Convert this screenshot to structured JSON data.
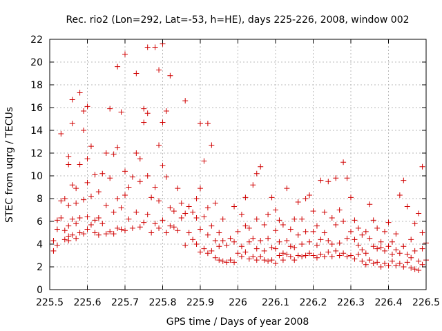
{
  "chart_data": {
    "type": "scatter",
    "title": "Rec. rio2 (Lon=292, Lat=-53, h=HE), days 225-226, 2008, window 002",
    "xlabel": "GPS time / Days of year 2008",
    "ylabel": "STEC from uqrg / TECUs",
    "xlim": [
      225.5,
      226.5
    ],
    "ylim": [
      0,
      22
    ],
    "xticks": [
      225.5,
      225.6,
      225.7,
      225.8,
      225.9,
      226.0,
      226.1,
      226.2,
      226.3,
      226.4,
      226.5
    ],
    "xtick_labels": [
      "225.5",
      "225.6",
      "225.7",
      "225.8",
      "225.9",
      "226",
      "226.1",
      "226.2",
      "226.3",
      "226.4",
      "226.5"
    ],
    "yticks": [
      0,
      2,
      4,
      6,
      8,
      10,
      12,
      14,
      16,
      18,
      20,
      22
    ],
    "ytick_labels": [
      "0",
      "2",
      "4",
      "6",
      "8",
      "10",
      "12",
      "14",
      "16",
      "18",
      "20",
      "22"
    ],
    "grid": true,
    "marker": "+",
    "color": "#d00000",
    "series": [
      {
        "name": "STEC",
        "points": [
          [
            225.51,
            3.4
          ],
          [
            225.51,
            4.3
          ],
          [
            225.52,
            3.9
          ],
          [
            225.52,
            5.3
          ],
          [
            225.52,
            6.1
          ],
          [
            225.53,
            6.3
          ],
          [
            225.53,
            7.8
          ],
          [
            225.53,
            13.7
          ],
          [
            225.54,
            4.4
          ],
          [
            225.54,
            5.2
          ],
          [
            225.54,
            8.0
          ],
          [
            225.55,
            4.3
          ],
          [
            225.55,
            4.7
          ],
          [
            225.55,
            5.6
          ],
          [
            225.55,
            7.4
          ],
          [
            225.55,
            11.0
          ],
          [
            225.55,
            11.7
          ],
          [
            225.56,
            4.8
          ],
          [
            225.56,
            6.2
          ],
          [
            225.56,
            9.2
          ],
          [
            225.56,
            14.6
          ],
          [
            225.56,
            16.7
          ],
          [
            225.57,
            4.5
          ],
          [
            225.57,
            5.8
          ],
          [
            225.57,
            7.6
          ],
          [
            225.57,
            8.9
          ],
          [
            225.58,
            5.0
          ],
          [
            225.58,
            6.3
          ],
          [
            225.58,
            11.0
          ],
          [
            225.58,
            17.3
          ],
          [
            225.59,
            4.9
          ],
          [
            225.59,
            7.9
          ],
          [
            225.59,
            14.0
          ],
          [
            225.59,
            15.7
          ],
          [
            225.6,
            5.3
          ],
          [
            225.6,
            6.4
          ],
          [
            225.6,
            9.4
          ],
          [
            225.6,
            11.5
          ],
          [
            225.6,
            16.1
          ],
          [
            225.61,
            5.7
          ],
          [
            225.61,
            8.2
          ],
          [
            225.61,
            12.6
          ],
          [
            225.62,
            5.0
          ],
          [
            225.62,
            6.1
          ],
          [
            225.62,
            10.1
          ],
          [
            225.63,
            4.8
          ],
          [
            225.63,
            6.3
          ],
          [
            225.63,
            8.6
          ],
          [
            225.64,
            5.8
          ],
          [
            225.64,
            10.2
          ],
          [
            225.65,
            4.9
          ],
          [
            225.65,
            7.4
          ],
          [
            225.65,
            12.0
          ],
          [
            225.66,
            5.1
          ],
          [
            225.66,
            9.8
          ],
          [
            225.66,
            15.9
          ],
          [
            225.67,
            4.9
          ],
          [
            225.67,
            6.8
          ],
          [
            225.67,
            11.9
          ],
          [
            225.68,
            5.4
          ],
          [
            225.68,
            8.0
          ],
          [
            225.68,
            12.5
          ],
          [
            225.68,
            19.6
          ],
          [
            225.69,
            5.3
          ],
          [
            225.69,
            7.2
          ],
          [
            225.69,
            15.6
          ],
          [
            225.7,
            5.2
          ],
          [
            225.7,
            8.3
          ],
          [
            225.7,
            10.4
          ],
          [
            225.7,
            20.7
          ],
          [
            225.71,
            6.2
          ],
          [
            225.71,
            9.0
          ],
          [
            225.72,
            5.4
          ],
          [
            225.72,
            9.9
          ],
          [
            225.73,
            6.8
          ],
          [
            225.73,
            12.0
          ],
          [
            225.73,
            19.0
          ],
          [
            225.74,
            5.5
          ],
          [
            225.74,
            9.5
          ],
          [
            225.74,
            11.5
          ],
          [
            225.75,
            5.9
          ],
          [
            225.75,
            14.7
          ],
          [
            225.75,
            15.9
          ],
          [
            225.76,
            6.6
          ],
          [
            225.76,
            10.0
          ],
          [
            225.76,
            15.5
          ],
          [
            225.76,
            21.3
          ],
          [
            225.77,
            5.0
          ],
          [
            225.77,
            8.1
          ],
          [
            225.78,
            5.8
          ],
          [
            225.78,
            9.0
          ],
          [
            225.78,
            21.3
          ],
          [
            225.79,
            5.4
          ],
          [
            225.79,
            7.8
          ],
          [
            225.79,
            12.7
          ],
          [
            225.79,
            19.3
          ],
          [
            225.8,
            6.1
          ],
          [
            225.8,
            10.9
          ],
          [
            225.8,
            14.7
          ],
          [
            225.8,
            21.6
          ],
          [
            225.81,
            5.0
          ],
          [
            225.81,
            9.9
          ],
          [
            225.81,
            15.7
          ],
          [
            225.82,
            5.6
          ],
          [
            225.82,
            7.2
          ],
          [
            225.82,
            18.8
          ],
          [
            225.83,
            5.5
          ],
          [
            225.83,
            6.9
          ],
          [
            225.84,
            5.2
          ],
          [
            225.84,
            8.9
          ],
          [
            225.85,
            6.3
          ],
          [
            225.85,
            7.6
          ],
          [
            225.86,
            3.9
          ],
          [
            225.86,
            6.7
          ],
          [
            225.86,
            16.6
          ],
          [
            225.87,
            5.0
          ],
          [
            225.87,
            7.3
          ],
          [
            225.88,
            4.4
          ],
          [
            225.88,
            6.8
          ],
          [
            225.89,
            4.0
          ],
          [
            225.89,
            6.3
          ],
          [
            225.89,
            8.0
          ],
          [
            225.9,
            3.3
          ],
          [
            225.9,
            5.3
          ],
          [
            225.9,
            8.9
          ],
          [
            225.9,
            14.6
          ],
          [
            225.91,
            3.6
          ],
          [
            225.91,
            6.4
          ],
          [
            225.91,
            11.3
          ],
          [
            225.92,
            3.2
          ],
          [
            225.92,
            4.8
          ],
          [
            225.92,
            7.2
          ],
          [
            225.92,
            14.6
          ],
          [
            225.93,
            3.4
          ],
          [
            225.93,
            5.6
          ],
          [
            225.93,
            12.7
          ],
          [
            225.94,
            2.8
          ],
          [
            225.94,
            4.3
          ],
          [
            225.94,
            7.6
          ],
          [
            225.95,
            2.6
          ],
          [
            225.95,
            3.8
          ],
          [
            225.95,
            5.0
          ],
          [
            225.96,
            2.5
          ],
          [
            225.96,
            4.3
          ],
          [
            225.96,
            6.2
          ],
          [
            225.97,
            2.4
          ],
          [
            225.97,
            3.9
          ],
          [
            225.98,
            2.6
          ],
          [
            225.98,
            4.5
          ],
          [
            225.99,
            2.4
          ],
          [
            225.99,
            4.2
          ],
          [
            225.99,
            7.3
          ],
          [
            226.0,
            3.2
          ],
          [
            226.0,
            5.1
          ],
          [
            226.01,
            2.9
          ],
          [
            226.01,
            3.8
          ],
          [
            226.01,
            6.6
          ],
          [
            226.02,
            3.3
          ],
          [
            226.02,
            5.6
          ],
          [
            226.02,
            8.1
          ],
          [
            226.03,
            2.7
          ],
          [
            226.03,
            4.2
          ],
          [
            226.03,
            5.4
          ],
          [
            226.04,
            2.9
          ],
          [
            226.04,
            4.5
          ],
          [
            226.04,
            9.2
          ],
          [
            226.05,
            2.6
          ],
          [
            226.05,
            3.6
          ],
          [
            226.05,
            6.2
          ],
          [
            226.05,
            10.2
          ],
          [
            226.06,
            2.9
          ],
          [
            226.06,
            4.3
          ],
          [
            226.06,
            10.8
          ],
          [
            226.07,
            2.6
          ],
          [
            226.07,
            3.4
          ],
          [
            226.07,
            5.7
          ],
          [
            226.08,
            2.5
          ],
          [
            226.08,
            4.5
          ],
          [
            226.08,
            6.6
          ],
          [
            226.09,
            2.6
          ],
          [
            226.09,
            3.7
          ],
          [
            226.09,
            8.1
          ],
          [
            226.1,
            2.3
          ],
          [
            226.1,
            3.6
          ],
          [
            226.1,
            5.2
          ],
          [
            226.1,
            7.0
          ],
          [
            226.11,
            3.0
          ],
          [
            226.11,
            4.2
          ],
          [
            226.11,
            6.1
          ],
          [
            226.12,
            2.6
          ],
          [
            226.12,
            3.2
          ],
          [
            226.12,
            5.7
          ],
          [
            226.13,
            3.1
          ],
          [
            226.13,
            4.3
          ],
          [
            226.13,
            8.9
          ],
          [
            226.14,
            2.9
          ],
          [
            226.14,
            3.8
          ],
          [
            226.14,
            5.3
          ],
          [
            226.15,
            2.6
          ],
          [
            226.15,
            3.7
          ],
          [
            226.15,
            6.2
          ],
          [
            226.16,
            3.0
          ],
          [
            226.16,
            4.8
          ],
          [
            226.16,
            7.7
          ],
          [
            226.17,
            2.9
          ],
          [
            226.17,
            4.0
          ],
          [
            226.17,
            6.2
          ],
          [
            226.18,
            3.0
          ],
          [
            226.18,
            5.1
          ],
          [
            226.18,
            8.0
          ],
          [
            226.19,
            3.2
          ],
          [
            226.19,
            4.2
          ],
          [
            226.19,
            8.3
          ],
          [
            226.2,
            3.0
          ],
          [
            226.2,
            5.1
          ],
          [
            226.2,
            6.9
          ],
          [
            226.21,
            2.8
          ],
          [
            226.21,
            3.9
          ],
          [
            226.21,
            5.6
          ],
          [
            226.22,
            3.1
          ],
          [
            226.22,
            4.4
          ],
          [
            226.22,
            9.6
          ],
          [
            226.23,
            2.9
          ],
          [
            226.23,
            5.0
          ],
          [
            226.23,
            6.8
          ],
          [
            226.24,
            3.3
          ],
          [
            226.24,
            4.3
          ],
          [
            226.24,
            9.5
          ],
          [
            226.25,
            2.9
          ],
          [
            226.25,
            4.0
          ],
          [
            226.25,
            6.3
          ],
          [
            226.26,
            3.4
          ],
          [
            226.26,
            5.7
          ],
          [
            226.26,
            9.8
          ],
          [
            226.27,
            3.0
          ],
          [
            226.27,
            4.1
          ],
          [
            226.27,
            7.0
          ],
          [
            226.28,
            3.2
          ],
          [
            226.28,
            6.0
          ],
          [
            226.28,
            11.2
          ],
          [
            226.29,
            2.9
          ],
          [
            226.29,
            4.5
          ],
          [
            226.29,
            9.8
          ],
          [
            226.3,
            3.0
          ],
          [
            226.3,
            5.1
          ],
          [
            226.3,
            8.1
          ],
          [
            226.31,
            2.7
          ],
          [
            226.31,
            4.4
          ],
          [
            226.31,
            6.1
          ],
          [
            226.32,
            3.1
          ],
          [
            226.32,
            3.9
          ],
          [
            226.32,
            5.4
          ],
          [
            226.33,
            2.5
          ],
          [
            226.33,
            3.5
          ],
          [
            226.33,
            4.8
          ],
          [
            226.34,
            2.2
          ],
          [
            226.34,
            3.2
          ],
          [
            226.34,
            5.1
          ],
          [
            226.35,
            2.6
          ],
          [
            226.35,
            4.5
          ],
          [
            226.35,
            7.5
          ],
          [
            226.36,
            2.3
          ],
          [
            226.36,
            3.8
          ],
          [
            226.36,
            6.1
          ],
          [
            226.37,
            2.4
          ],
          [
            226.37,
            3.6
          ],
          [
            226.37,
            5.4
          ],
          [
            226.38,
            2.0
          ],
          [
            226.38,
            3.7
          ],
          [
            226.38,
            4.2
          ],
          [
            226.39,
            2.3
          ],
          [
            226.39,
            3.4
          ],
          [
            226.39,
            5.1
          ],
          [
            226.4,
            2.1
          ],
          [
            226.4,
            3.8
          ],
          [
            226.4,
            5.9
          ],
          [
            226.41,
            2.5
          ],
          [
            226.41,
            4.2
          ],
          [
            226.41,
            3.1
          ],
          [
            226.42,
            2.1
          ],
          [
            226.42,
            3.5
          ],
          [
            226.42,
            4.9
          ],
          [
            226.43,
            2.3
          ],
          [
            226.43,
            3.2
          ],
          [
            226.43,
            8.3
          ],
          [
            226.44,
            2.0
          ],
          [
            226.44,
            3.8
          ],
          [
            226.44,
            9.6
          ],
          [
            226.45,
            2.4
          ],
          [
            226.45,
            3.1
          ],
          [
            226.45,
            7.3
          ],
          [
            226.46,
            1.9
          ],
          [
            226.46,
            2.8
          ],
          [
            226.46,
            4.4
          ],
          [
            226.47,
            1.8
          ],
          [
            226.47,
            3.4
          ],
          [
            226.47,
            5.8
          ],
          [
            226.48,
            1.7
          ],
          [
            226.48,
            2.5
          ],
          [
            226.48,
            6.7
          ],
          [
            226.49,
            2.2
          ],
          [
            226.49,
            3.6
          ],
          [
            226.49,
            5.0
          ],
          [
            226.49,
            10.8
          ],
          [
            226.5,
            2.6
          ],
          [
            226.5,
            4.1
          ]
        ]
      }
    ]
  }
}
